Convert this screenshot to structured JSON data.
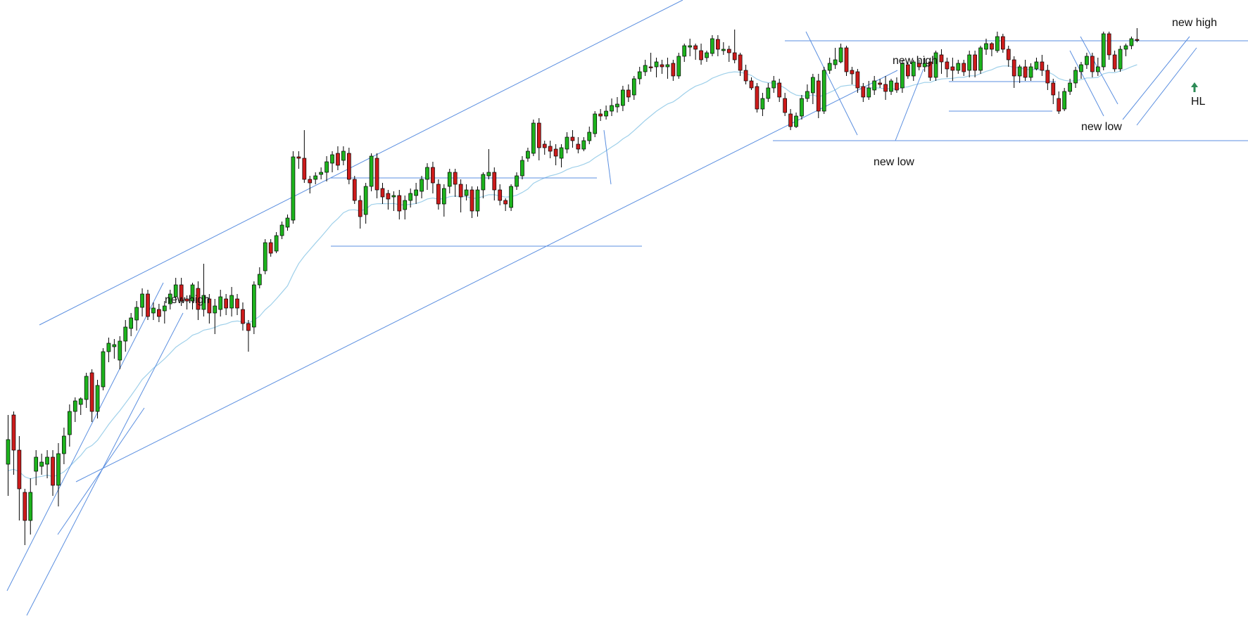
{
  "chart_data": {
    "type": "candlestick",
    "title": "",
    "xlabel": "",
    "ylabel": "",
    "grid": false,
    "legend": "none",
    "colors": {
      "up": "#1db31d",
      "down": "#cc1b1b",
      "wick": "#000000",
      "trendline": "#5b8fe0",
      "ema": "#9fd0ea",
      "arrow": "#2e8b57"
    },
    "annotations": [
      {
        "text": "new high"
      },
      {
        "text": "new high"
      },
      {
        "text": "new low"
      },
      {
        "text": "new low"
      },
      {
        "text": "new high"
      },
      {
        "text": "HL"
      }
    ],
    "candles": [
      [
        660,
        625,
        590,
        705
      ],
      [
        590,
        640,
        585,
        675
      ],
      [
        640,
        695,
        620,
        740
      ],
      [
        700,
        740,
        695,
        775
      ],
      [
        740,
        700,
        680,
        760
      ],
      [
        670,
        650,
        640,
        690
      ],
      [
        663,
        657,
        645,
        675
      ],
      [
        660,
        650,
        640,
        680
      ],
      [
        650,
        690,
        640,
        705
      ],
      [
        690,
        645,
        630,
        720
      ],
      [
        645,
        620,
        608,
        660
      ],
      [
        618,
        585,
        575,
        635
      ],
      [
        585,
        570,
        565,
        600
      ],
      [
        575,
        567,
        565,
        590
      ],
      [
        568,
        535,
        530,
        580
      ],
      [
        530,
        585,
        525,
        600
      ],
      [
        585,
        548,
        540,
        595
      ],
      [
        550,
        500,
        495,
        555
      ],
      [
        500,
        488,
        480,
        515
      ],
      [
        493,
        490,
        482,
        510
      ],
      [
        512,
        485,
        478,
        525
      ],
      [
        485,
        465,
        455,
        500
      ],
      [
        467,
        452,
        445,
        478
      ],
      [
        455,
        437,
        428,
        470
      ],
      [
        437,
        418,
        410,
        450
      ],
      [
        418,
        450,
        412,
        455
      ],
      [
        445,
        438,
        430,
        455
      ],
      [
        440,
        450,
        432,
        458
      ],
      [
        442,
        435,
        428,
        460
      ],
      [
        432,
        418,
        412,
        440
      ],
      [
        422,
        405,
        395,
        430
      ],
      [
        405,
        428,
        395,
        435
      ],
      [
        425,
        428,
        420,
        440
      ],
      [
        428,
        405,
        402,
        440
      ],
      [
        410,
        440,
        400,
        455
      ],
      [
        440,
        420,
        375,
        450
      ],
      [
        425,
        445,
        418,
        460
      ],
      [
        445,
        435,
        425,
        475
      ],
      [
        440,
        422,
        412,
        450
      ],
      [
        425,
        438,
        418,
        448
      ],
      [
        438,
        420,
        408,
        450
      ],
      [
        425,
        438,
        418,
        448
      ],
      [
        440,
        460,
        430,
        470
      ],
      [
        460,
        470,
        455,
        500
      ],
      [
        465,
        405,
        400,
        475
      ],
      [
        405,
        390,
        380,
        410
      ],
      [
        385,
        345,
        340,
        390
      ],
      [
        345,
        360,
        340,
        365
      ],
      [
        357,
        335,
        330,
        360
      ],
      [
        335,
        320,
        315,
        340
      ],
      [
        323,
        310,
        305,
        328
      ],
      [
        313,
        223,
        215,
        318
      ],
      [
        223,
        225,
        215,
        240
      ],
      [
        225,
        255,
        185,
        260
      ],
      [
        255,
        260,
        250,
        275
      ],
      [
        255,
        250,
        245,
        262
      ],
      [
        248,
        245,
        238,
        255
      ],
      [
        245,
        230,
        222,
        258
      ],
      [
        232,
        220,
        215,
        245
      ],
      [
        218,
        235,
        208,
        242
      ],
      [
        228,
        215,
        208,
        235
      ],
      [
        218,
        255,
        210,
        262
      ],
      [
        255,
        285,
        250,
        290
      ],
      [
        285,
        308,
        278,
        325
      ],
      [
        305,
        265,
        260,
        318
      ],
      [
        265,
        222,
        218,
        272
      ],
      [
        225,
        270,
        218,
        282
      ],
      [
        268,
        280,
        260,
        290
      ],
      [
        275,
        283,
        270,
        298
      ],
      [
        280,
        278,
        272,
        300
      ],
      [
        278,
        300,
        270,
        312
      ],
      [
        298,
        285,
        278,
        312
      ],
      [
        285,
        275,
        268,
        295
      ],
      [
        278,
        270,
        260,
        290
      ],
      [
        272,
        255,
        250,
        282
      ],
      [
        255,
        238,
        232,
        270
      ],
      [
        238,
        260,
        230,
        275
      ],
      [
        262,
        290,
        255,
        298
      ],
      [
        290,
        268,
        262,
        308
      ],
      [
        265,
        245,
        240,
        275
      ],
      [
        245,
        262,
        240,
        280
      ],
      [
        262,
        280,
        255,
        302
      ],
      [
        278,
        270,
        262,
        285
      ],
      [
        270,
        300,
        265,
        310
      ],
      [
        300,
        270,
        265,
        308
      ],
      [
        270,
        248,
        245,
        282
      ],
      [
        250,
        245,
        212,
        255
      ],
      [
        245,
        270,
        238,
        285
      ],
      [
        270,
        285,
        262,
        292
      ],
      [
        285,
        290,
        282,
        300
      ],
      [
        295,
        265,
        262,
        300
      ],
      [
        265,
        250,
        245,
        270
      ],
      [
        250,
        228,
        222,
        255
      ],
      [
        225,
        215,
        210,
        230
      ],
      [
        218,
        175,
        170,
        222
      ],
      [
        175,
        210,
        168,
        228
      ],
      [
        205,
        210,
        200,
        220
      ],
      [
        208,
        215,
        200,
        225
      ],
      [
        212,
        222,
        205,
        235
      ],
      [
        225,
        210,
        205,
        238
      ],
      [
        212,
        195,
        188,
        218
      ],
      [
        195,
        200,
        185,
        210
      ],
      [
        205,
        212,
        195,
        218
      ],
      [
        212,
        200,
        195,
        215
      ],
      [
        200,
        188,
        180,
        205
      ],
      [
        190,
        162,
        158,
        195
      ],
      [
        162,
        165,
        155,
        172
      ],
      [
        165,
        158,
        150,
        170
      ],
      [
        158,
        150,
        140,
        165
      ],
      [
        152,
        148,
        138,
        160
      ],
      [
        150,
        128,
        122,
        158
      ],
      [
        128,
        138,
        120,
        145
      ],
      [
        135,
        112,
        108,
        142
      ],
      [
        112,
        102,
        95,
        120
      ],
      [
        102,
        93,
        85,
        108
      ],
      [
        95,
        95,
        75,
        102
      ],
      [
        95,
        88,
        82,
        110
      ],
      [
        92,
        95,
        85,
        105
      ],
      [
        95,
        92,
        82,
        112
      ],
      [
        90,
        108,
        85,
        115
      ],
      [
        108,
        80,
        75,
        112
      ],
      [
        80,
        65,
        62,
        88
      ],
      [
        67,
        65,
        55,
        80
      ],
      [
        65,
        70,
        62,
        85
      ],
      [
        72,
        85,
        62,
        92
      ],
      [
        82,
        75,
        72,
        88
      ],
      [
        76,
        55,
        50,
        80
      ],
      [
        56,
        70,
        50,
        80
      ],
      [
        72,
        70,
        60,
        78
      ],
      [
        70,
        75,
        65,
        88
      ],
      [
        75,
        85,
        42,
        90
      ],
      [
        78,
        100,
        75,
        108
      ],
      [
        100,
        115,
        92,
        120
      ],
      [
        115,
        125,
        110,
        128
      ],
      [
        123,
        155,
        118,
        160
      ],
      [
        155,
        140,
        132,
        165
      ],
      [
        140,
        125,
        118,
        145
      ],
      [
        125,
        115,
        108,
        132
      ],
      [
        118,
        138,
        112,
        145
      ],
      [
        140,
        160,
        132,
        165
      ],
      [
        162,
        180,
        155,
        185
      ],
      [
        180,
        165,
        160,
        182
      ],
      [
        165,
        140,
        135,
        170
      ],
      [
        140,
        130,
        120,
        145
      ],
      [
        132,
        110,
        105,
        148
      ],
      [
        115,
        158,
        105,
        168
      ],
      [
        158,
        100,
        95,
        162
      ],
      [
        100,
        90,
        82,
        105
      ],
      [
        92,
        85,
        68,
        98
      ],
      [
        88,
        68,
        62,
        90
      ],
      [
        68,
        102,
        65,
        108
      ],
      [
        100,
        105,
        95,
        120
      ],
      [
        102,
        125,
        98,
        132
      ],
      [
        123,
        138,
        118,
        145
      ],
      [
        138,
        125,
        115,
        142
      ],
      [
        128,
        115,
        108,
        135
      ],
      [
        118,
        120,
        112,
        125
      ],
      [
        120,
        130,
        108,
        142
      ],
      [
        130,
        115,
        112,
        135
      ],
      [
        118,
        128,
        110,
        132
      ],
      [
        125,
        90,
        85,
        132
      ],
      [
        92,
        108,
        88,
        112
      ],
      [
        108,
        88,
        85,
        115
      ],
      [
        90,
        95,
        85,
        100
      ],
      [
        95,
        90,
        82,
        102
      ],
      [
        88,
        110,
        82,
        115
      ],
      [
        110,
        75,
        72,
        115
      ],
      [
        78,
        88,
        70,
        105
      ],
      [
        88,
        98,
        82,
        110
      ],
      [
        95,
        100,
        82,
        115
      ],
      [
        100,
        90,
        85,
        105
      ],
      [
        90,
        102,
        85,
        108
      ],
      [
        100,
        78,
        72,
        110
      ],
      [
        78,
        100,
        72,
        110
      ],
      [
        100,
        68,
        65,
        105
      ],
      [
        70,
        62,
        55,
        78
      ],
      [
        62,
        70,
        60,
        80
      ],
      [
        72,
        52,
        45,
        75
      ],
      [
        52,
        70,
        48,
        75
      ],
      [
        70,
        85,
        65,
        95
      ],
      [
        85,
        108,
        80,
        125
      ],
      [
        108,
        95,
        92,
        118
      ],
      [
        95,
        110,
        85,
        115
      ],
      [
        110,
        95,
        90,
        115
      ],
      [
        98,
        88,
        82,
        100
      ],
      [
        88,
        100,
        78,
        108
      ],
      [
        100,
        118,
        92,
        128
      ],
      [
        118,
        135,
        112,
        148
      ],
      [
        140,
        158,
        130,
        162
      ],
      [
        155,
        130,
        125,
        158
      ],
      [
        130,
        118,
        112,
        135
      ],
      [
        118,
        100,
        95,
        125
      ],
      [
        102,
        92,
        88,
        112
      ],
      [
        92,
        80,
        75,
        98
      ],
      [
        80,
        102,
        75,
        110
      ],
      [
        102,
        95,
        82,
        108
      ],
      [
        95,
        48,
        45,
        100
      ],
      [
        48,
        78,
        45,
        85
      ],
      [
        78,
        98,
        72,
        102
      ],
      [
        98,
        70,
        65,
        102
      ],
      [
        70,
        65,
        62,
        80
      ],
      [
        65,
        55,
        52,
        70
      ],
      [
        56,
        56,
        40,
        60
      ]
    ]
  }
}
